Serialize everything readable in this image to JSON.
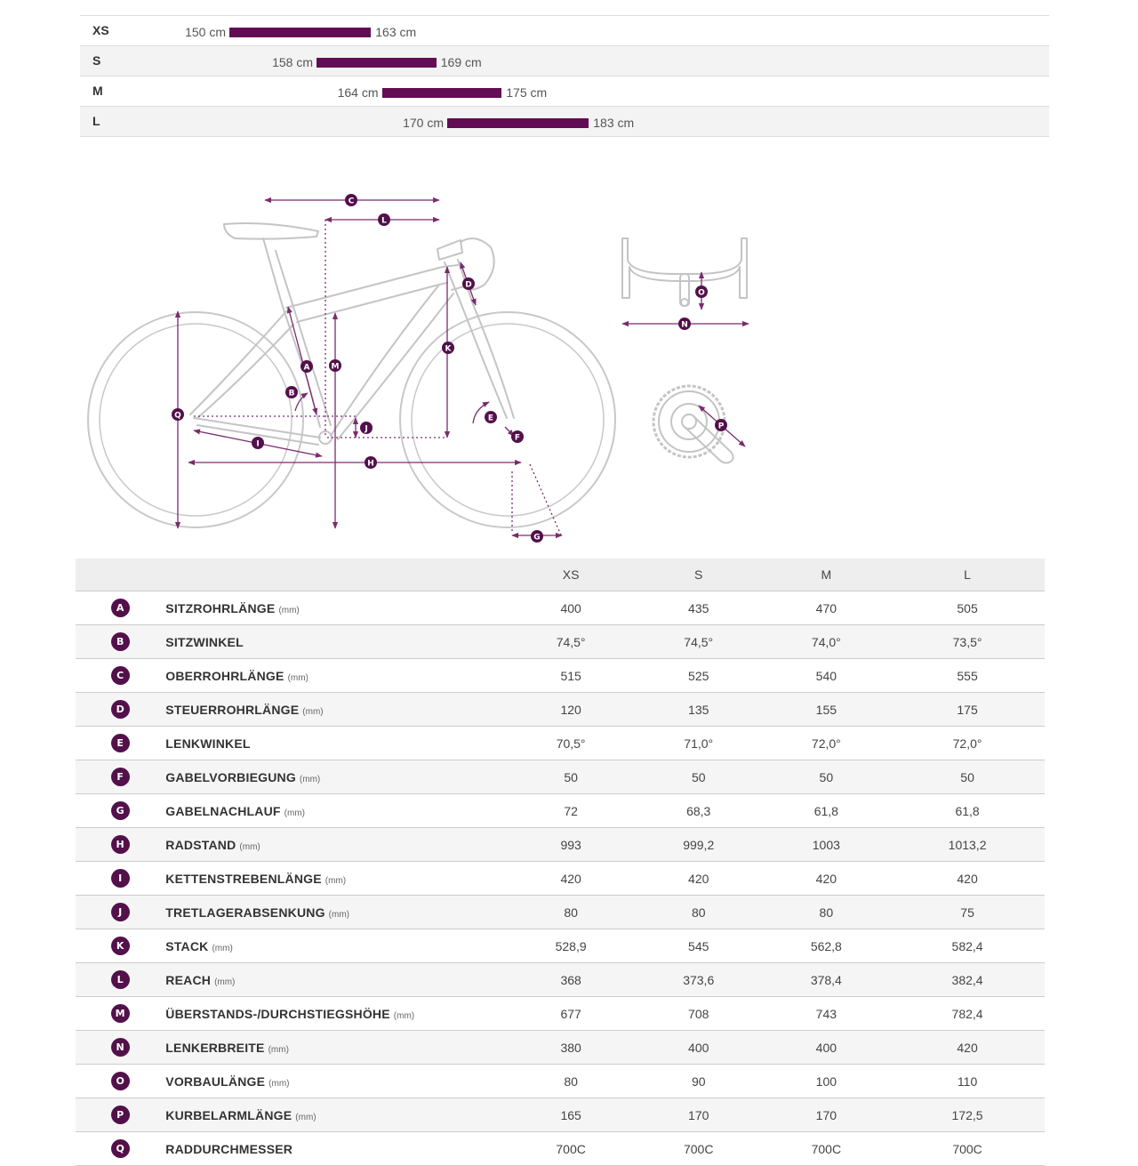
{
  "colors": {
    "bar": "#620c55",
    "badge": "#53104a",
    "line": "#7a2b6e"
  },
  "size_ranges": [
    {
      "size": "XS",
      "min": "150 cm",
      "max": "163 cm",
      "min_value": 150,
      "max_value": 163
    },
    {
      "size": "S",
      "min": "158 cm",
      "max": "169 cm",
      "min_value": 158,
      "max_value": 169
    },
    {
      "size": "M",
      "min": "164 cm",
      "max": "175 cm",
      "min_value": 164,
      "max_value": 175
    },
    {
      "size": "L",
      "min": "170 cm",
      "max": "183 cm",
      "min_value": 170,
      "max_value": 183
    }
  ],
  "table": {
    "headers": [
      "XS",
      "S",
      "M",
      "L"
    ],
    "rows": [
      {
        "letter": "A",
        "label": "SITZROHRLÄNGE",
        "unit": "(mm)",
        "values": [
          "400",
          "435",
          "470",
          "505"
        ]
      },
      {
        "letter": "B",
        "label": "SITZWINKEL",
        "unit": "",
        "values": [
          "74,5°",
          "74,5°",
          "74,0°",
          "73,5°"
        ]
      },
      {
        "letter": "C",
        "label": "OBERROHRLÄNGE",
        "unit": "(mm)",
        "values": [
          "515",
          "525",
          "540",
          "555"
        ]
      },
      {
        "letter": "D",
        "label": "STEUERROHRLÄNGE",
        "unit": "(mm)",
        "values": [
          "120",
          "135",
          "155",
          "175"
        ]
      },
      {
        "letter": "E",
        "label": "LENKWINKEL",
        "unit": "",
        "values": [
          "70,5°",
          "71,0°",
          "72,0°",
          "72,0°"
        ]
      },
      {
        "letter": "F",
        "label": "GABELVORBIEGUNG",
        "unit": "(mm)",
        "values": [
          "50",
          "50",
          "50",
          "50"
        ]
      },
      {
        "letter": "G",
        "label": "GABELNACHLAUF",
        "unit": "(mm)",
        "values": [
          "72",
          "68,3",
          "61,8",
          "61,8"
        ]
      },
      {
        "letter": "H",
        "label": "RADSTAND",
        "unit": "(mm)",
        "values": [
          "993",
          "999,2",
          "1003",
          "1013,2"
        ]
      },
      {
        "letter": "I",
        "label": "KETTENSTREBENLÄNGE",
        "unit": "(mm)",
        "values": [
          "420",
          "420",
          "420",
          "420"
        ]
      },
      {
        "letter": "J",
        "label": "TRETLAGERABSENKUNG",
        "unit": "(mm)",
        "values": [
          "80",
          "80",
          "80",
          "75"
        ]
      },
      {
        "letter": "K",
        "label": "STACK",
        "unit": "(mm)",
        "values": [
          "528,9",
          "545",
          "562,8",
          "582,4"
        ]
      },
      {
        "letter": "L",
        "label": "REACH",
        "unit": "(mm)",
        "values": [
          "368",
          "373,6",
          "378,4",
          "382,4"
        ]
      },
      {
        "letter": "M",
        "label": "ÜBERSTANDS-/DURCHSTIEGSHÖHE",
        "unit": "(mm)",
        "values": [
          "677",
          "708",
          "743",
          "782,4"
        ]
      },
      {
        "letter": "N",
        "label": "LENKERBREITE",
        "unit": "(mm)",
        "values": [
          "380",
          "400",
          "400",
          "420"
        ]
      },
      {
        "letter": "O",
        "label": "VORBAULÄNGE",
        "unit": "(mm)",
        "values": [
          "80",
          "90",
          "100",
          "110"
        ]
      },
      {
        "letter": "P",
        "label": "KURBELARMLÄNGE",
        "unit": "(mm)",
        "values": [
          "165",
          "170",
          "170",
          "172,5"
        ]
      },
      {
        "letter": "Q",
        "label": "RADDURCHMESSER",
        "unit": "",
        "values": [
          "700C",
          "700C",
          "700C",
          "700C"
        ]
      }
    ]
  }
}
